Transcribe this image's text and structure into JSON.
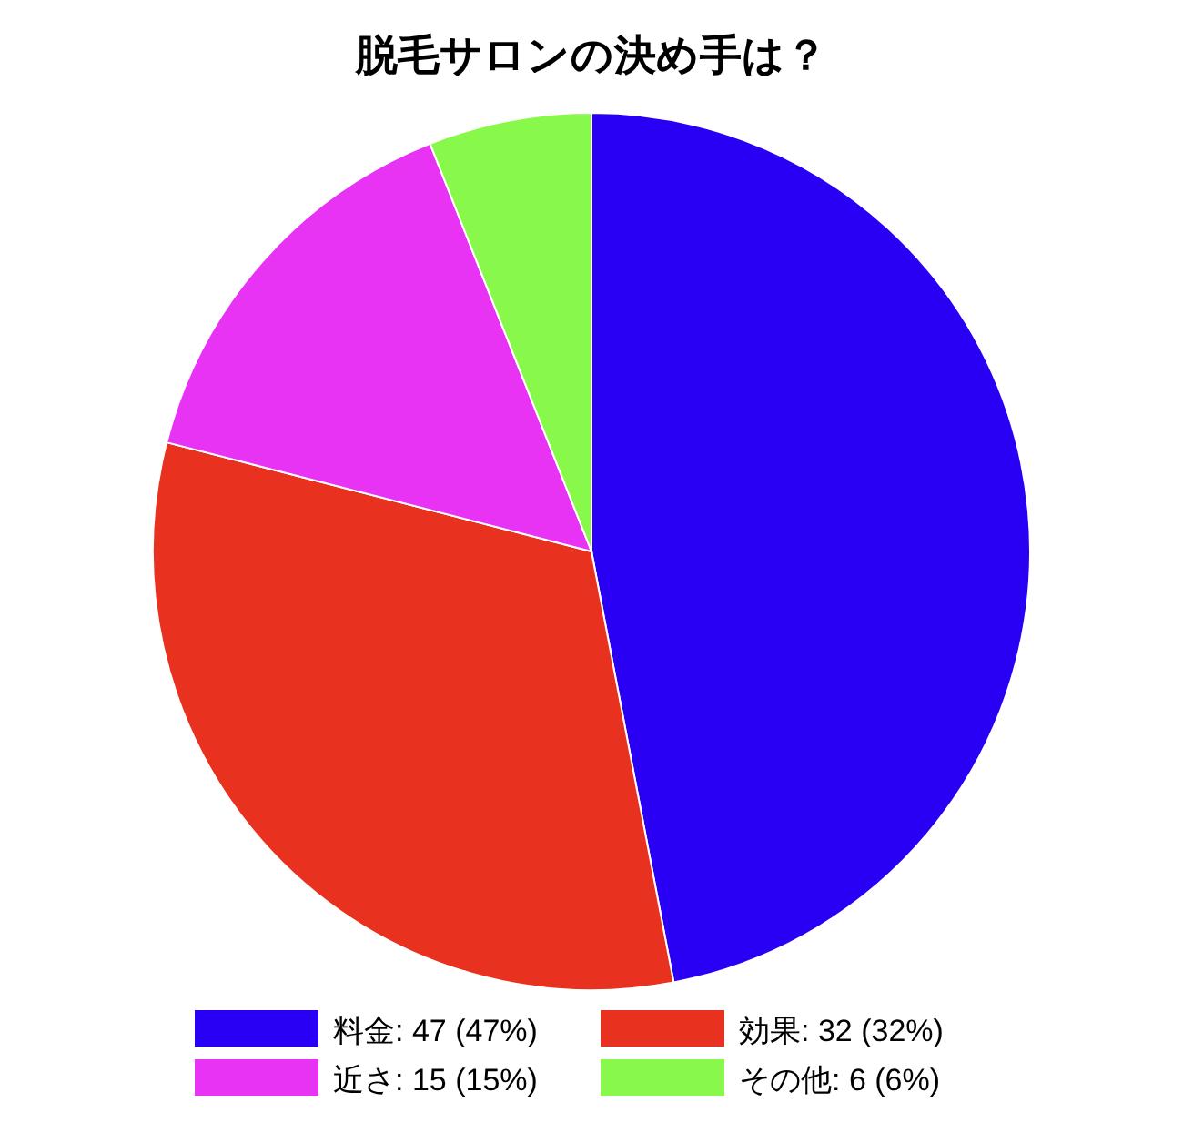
{
  "chart_data": {
    "type": "pie",
    "title": "脱毛サロンの決め手は？",
    "categories": [
      "料金",
      "効果",
      "近さ",
      "その他"
    ],
    "values": [
      47,
      32,
      15,
      6
    ],
    "value_labels": [
      "47 (47%)",
      "32 (32%)",
      "15 (15%)",
      "6 (6%)"
    ],
    "colors": [
      "#2a00f5",
      "#e8321f",
      "#e833f5",
      "#88f94a"
    ],
    "legend": "bottom"
  }
}
